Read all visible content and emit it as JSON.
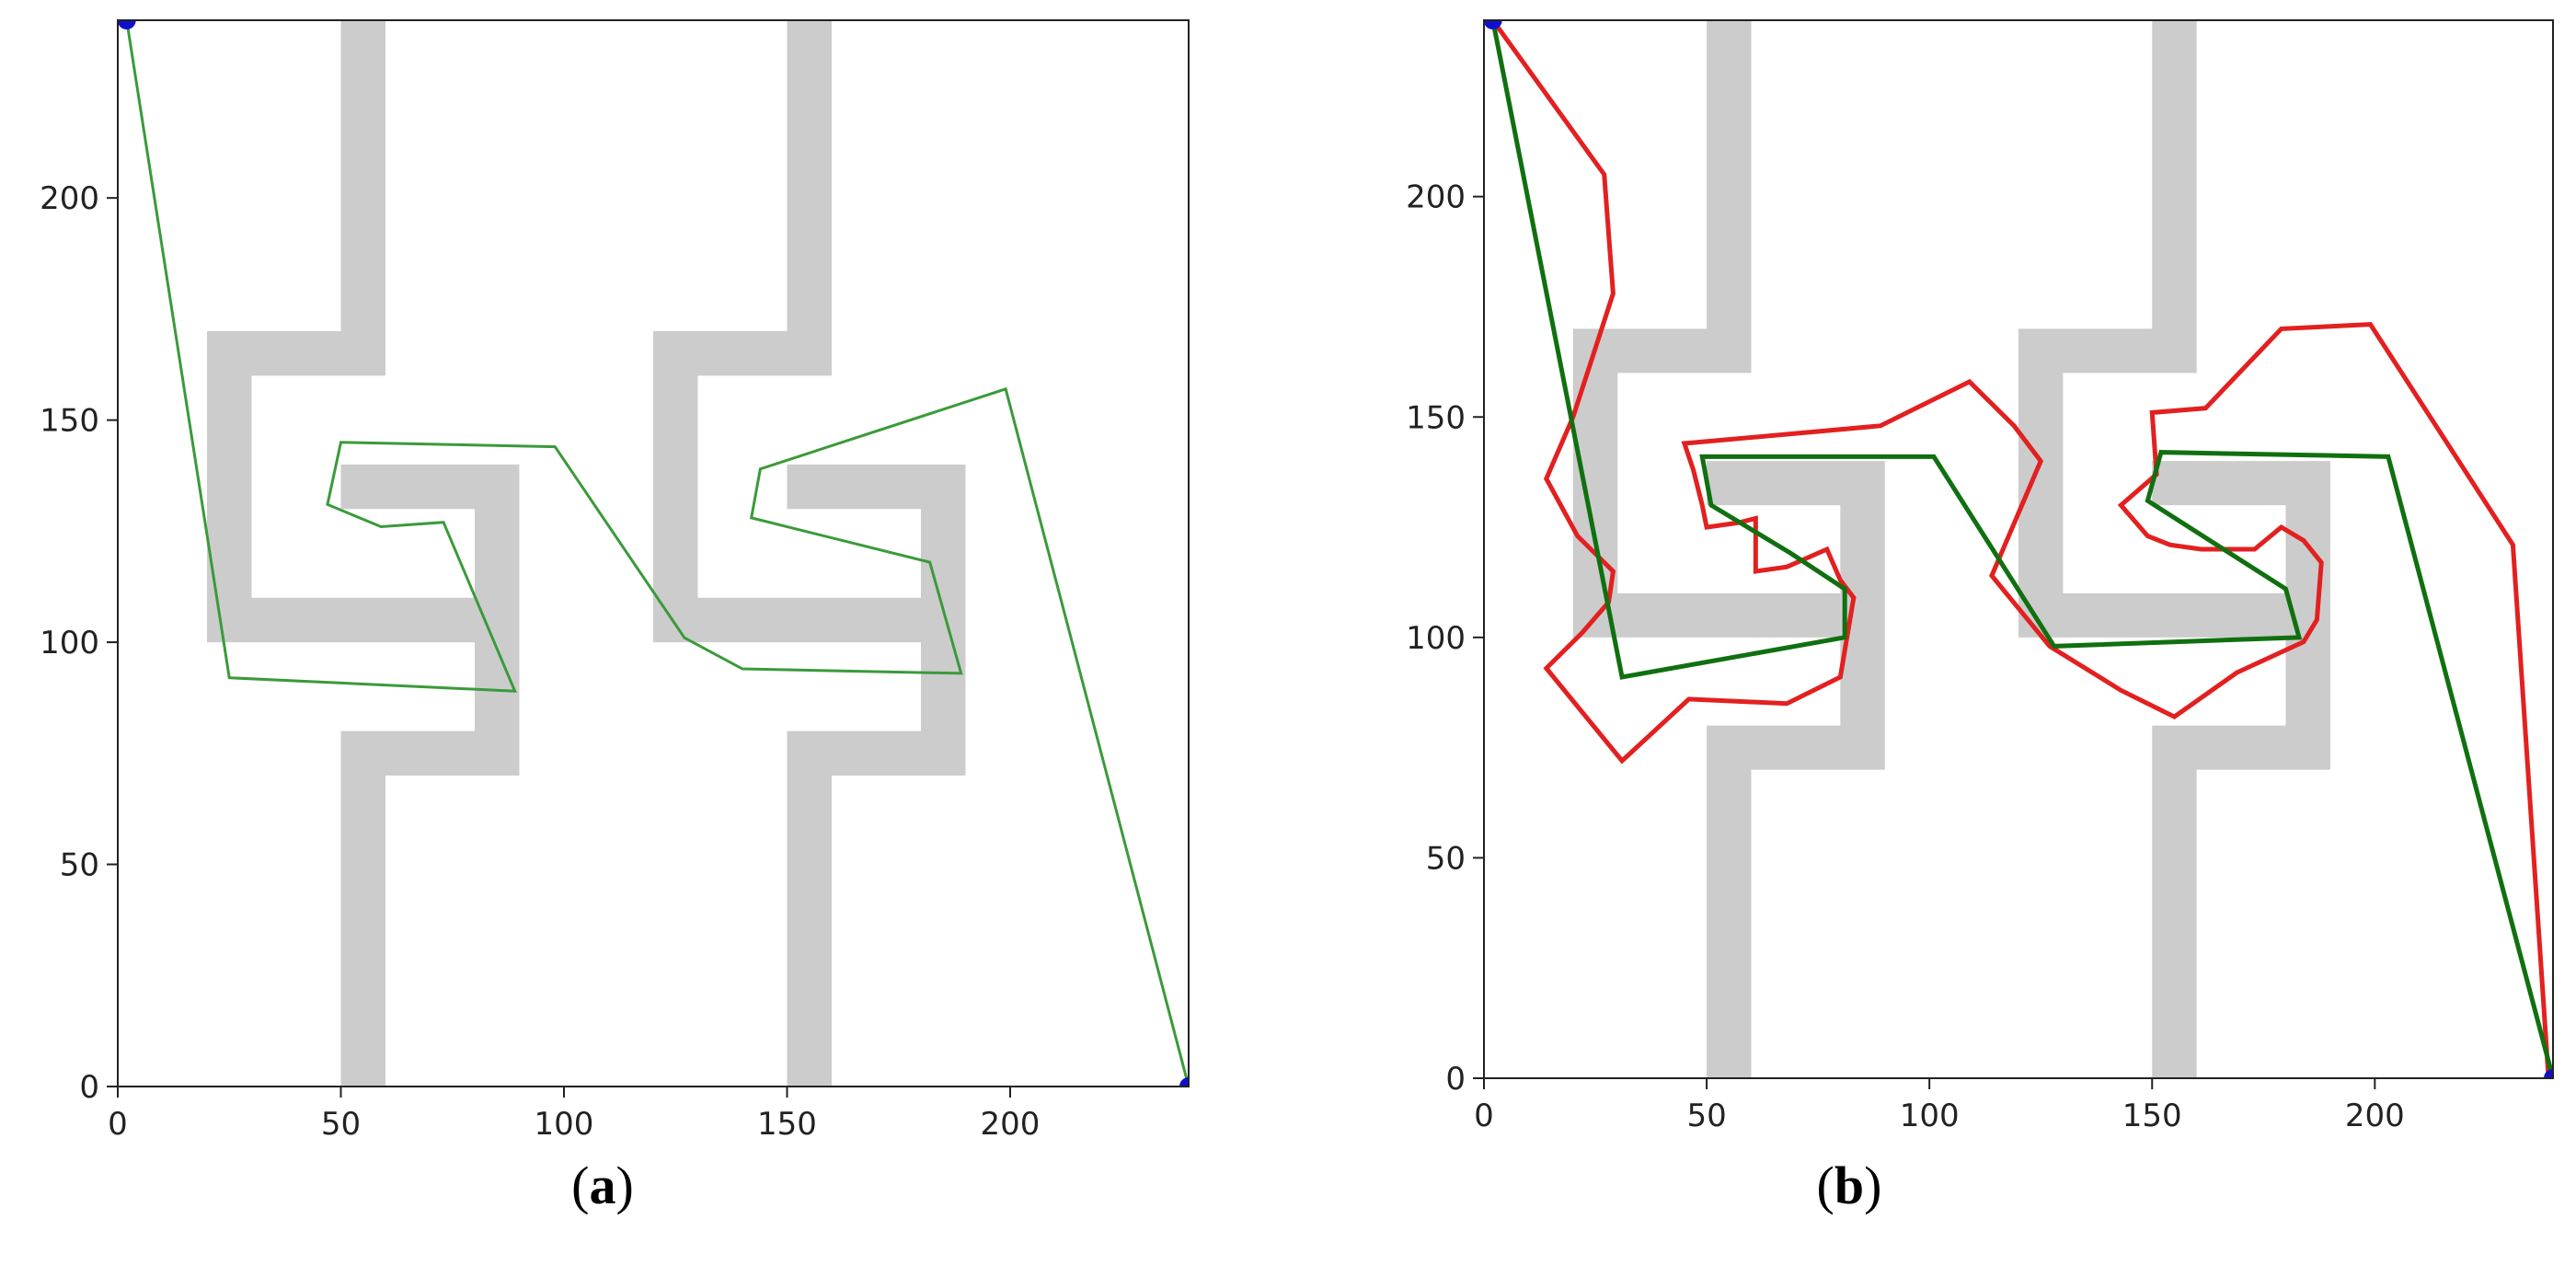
{
  "chart_data": [
    {
      "panel": "a",
      "caption": "a",
      "type": "line",
      "title": "",
      "xlabel": "",
      "ylabel": "",
      "xlim": [
        0,
        240
      ],
      "ylim": [
        0,
        240
      ],
      "xticks": [
        0,
        50,
        100,
        150,
        200
      ],
      "yticks": [
        0,
        50,
        100,
        150,
        200
      ],
      "grid": false,
      "obstacles": [
        [
          [
            60,
            240
          ],
          [
            60,
            160
          ],
          [
            30,
            160
          ],
          [
            30,
            110
          ],
          [
            80,
            110
          ],
          [
            80,
            100
          ],
          [
            20,
            100
          ],
          [
            20,
            170
          ],
          [
            50,
            170
          ],
          [
            50,
            240
          ]
        ],
        [
          [
            50,
            0
          ],
          [
            50,
            80
          ],
          [
            80,
            80
          ],
          [
            80,
            130
          ],
          [
            50,
            130
          ],
          [
            50,
            140
          ],
          [
            90,
            140
          ],
          [
            90,
            70
          ],
          [
            60,
            70
          ],
          [
            60,
            0
          ]
        ],
        [
          [
            160,
            240
          ],
          [
            160,
            160
          ],
          [
            130,
            160
          ],
          [
            130,
            110
          ],
          [
            180,
            110
          ],
          [
            180,
            100
          ],
          [
            120,
            100
          ],
          [
            120,
            170
          ],
          [
            150,
            170
          ],
          [
            150,
            240
          ]
        ],
        [
          [
            150,
            0
          ],
          [
            150,
            80
          ],
          [
            180,
            80
          ],
          [
            180,
            130
          ],
          [
            150,
            130
          ],
          [
            150,
            140
          ],
          [
            190,
            140
          ],
          [
            190,
            70
          ],
          [
            160,
            70
          ],
          [
            160,
            0
          ]
        ]
      ],
      "markers": [
        [
          2,
          240
        ],
        [
          240,
          0
        ]
      ],
      "series": [
        {
          "color": "#3a9a3a",
          "points": [
            [
              2,
              240
            ],
            [
              25,
              92
            ],
            [
              89,
              89
            ],
            [
              73,
              127
            ],
            [
              59,
              126
            ],
            [
              47,
              131
            ],
            [
              50,
              145
            ],
            [
              98,
              144
            ],
            [
              127,
              101
            ],
            [
              140,
              94
            ],
            [
              189,
              93
            ],
            [
              182,
              118
            ],
            [
              142,
              128
            ],
            [
              144,
              139
            ],
            [
              199,
              157
            ],
            [
              240,
              0
            ]
          ]
        }
      ]
    },
    {
      "panel": "b",
      "caption": "b",
      "type": "line",
      "title": "",
      "xlabel": "",
      "ylabel": "",
      "xlim": [
        0,
        240
      ],
      "ylim": [
        0,
        240
      ],
      "xticks": [
        0,
        50,
        100,
        150,
        200
      ],
      "yticks": [
        0,
        50,
        100,
        150,
        200
      ],
      "grid": false,
      "obstacles": [
        [
          [
            60,
            240
          ],
          [
            60,
            160
          ],
          [
            30,
            160
          ],
          [
            30,
            110
          ],
          [
            80,
            110
          ],
          [
            80,
            100
          ],
          [
            20,
            100
          ],
          [
            20,
            170
          ],
          [
            50,
            170
          ],
          [
            50,
            240
          ]
        ],
        [
          [
            50,
            0
          ],
          [
            50,
            80
          ],
          [
            80,
            80
          ],
          [
            80,
            130
          ],
          [
            50,
            130
          ],
          [
            50,
            140
          ],
          [
            90,
            140
          ],
          [
            90,
            70
          ],
          [
            60,
            70
          ],
          [
            60,
            0
          ]
        ],
        [
          [
            160,
            240
          ],
          [
            160,
            160
          ],
          [
            130,
            160
          ],
          [
            130,
            110
          ],
          [
            180,
            110
          ],
          [
            180,
            100
          ],
          [
            120,
            100
          ],
          [
            120,
            170
          ],
          [
            150,
            170
          ],
          [
            150,
            240
          ]
        ],
        [
          [
            150,
            0
          ],
          [
            150,
            80
          ],
          [
            180,
            80
          ],
          [
            180,
            130
          ],
          [
            150,
            130
          ],
          [
            150,
            140
          ],
          [
            190,
            140
          ],
          [
            190,
            70
          ],
          [
            160,
            70
          ],
          [
            160,
            0
          ]
        ]
      ],
      "markers": [
        [
          2,
          240
        ],
        [
          240,
          0
        ]
      ],
      "series": [
        {
          "color": "#e32020",
          "points": [
            [
              2,
              240
            ],
            [
              27,
              205
            ],
            [
              29,
              178
            ],
            [
              20,
              150
            ],
            [
              14,
              136
            ],
            [
              21,
              123
            ],
            [
              29,
              115
            ],
            [
              28,
              108
            ],
            [
              22,
              101
            ],
            [
              14,
              93
            ],
            [
              31,
              72
            ],
            [
              46,
              86
            ],
            [
              68,
              85
            ],
            [
              80,
              91
            ],
            [
              82,
              103
            ],
            [
              83,
              109
            ],
            [
              80,
              113
            ],
            [
              77,
              120
            ],
            [
              68,
              116
            ],
            [
              61,
              115
            ],
            [
              61,
              127
            ],
            [
              57,
              126
            ],
            [
              50,
              125
            ],
            [
              49,
              130
            ],
            [
              47,
              138
            ],
            [
              45,
              144
            ],
            [
              89,
              148
            ],
            [
              109,
              158
            ],
            [
              119,
              148
            ],
            [
              125,
              140
            ],
            [
              114,
              114
            ],
            [
              127,
              98
            ],
            [
              143,
              88
            ],
            [
              155,
              82
            ],
            [
              169,
              92
            ],
            [
              184,
              99
            ],
            [
              187,
              104
            ],
            [
              188,
              117
            ],
            [
              184,
              122
            ],
            [
              179,
              125
            ],
            [
              173,
              120
            ],
            [
              161,
              120
            ],
            [
              154,
              121
            ],
            [
              149,
              123
            ],
            [
              143,
              130
            ],
            [
              151,
              137
            ],
            [
              150,
              151
            ],
            [
              162,
              152
            ],
            [
              179,
              170
            ],
            [
              199,
              171
            ],
            [
              231,
              121
            ],
            [
              239,
              0
            ]
          ]
        },
        {
          "color": "#107010",
          "points": [
            [
              2,
              240
            ],
            [
              31,
              91
            ],
            [
              81,
              100
            ],
            [
              81,
              111
            ],
            [
              69,
              119
            ],
            [
              51,
              130
            ],
            [
              49,
              141
            ],
            [
              101,
              141
            ],
            [
              128,
              98
            ],
            [
              183,
              100
            ],
            [
              180,
              111
            ],
            [
              149,
              131
            ],
            [
              152,
              142
            ],
            [
              203,
              141
            ],
            [
              240,
              0
            ]
          ]
        }
      ]
    }
  ]
}
